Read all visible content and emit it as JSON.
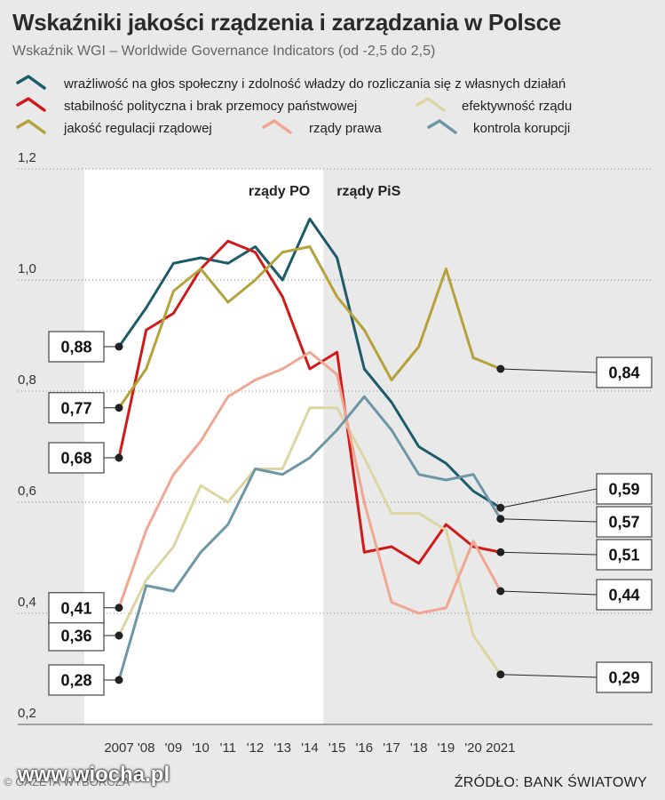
{
  "header": {
    "title": "Wskaźniki jakości rządzenia i zarządzania w Polsce",
    "subtitle": "Wskaźnik WGI – Worldwide Governance Indicators (od -2,5 do 2,5)"
  },
  "footer": {
    "source": "ŹRÓDŁO: BANK ŚWIATOWY",
    "credit": "© GAZETA WYBORCZA",
    "watermark": "www.wiocha.pl"
  },
  "chart_data": {
    "type": "line",
    "x": [
      2007,
      2008,
      2009,
      2010,
      2011,
      2012,
      2013,
      2014,
      2015,
      2016,
      2017,
      2018,
      2019,
      2020,
      2021
    ],
    "x_tick_labels": [
      "2007",
      "'08",
      "'09",
      "'10",
      "'11",
      "'12",
      "'13",
      "'14",
      "'15",
      "'16",
      "'17",
      "'18",
      "'19",
      "'20",
      "2021"
    ],
    "ylim": [
      0.2,
      1.2
    ],
    "y_ticks": [
      "0,2",
      "0,4",
      "0,6",
      "0,8",
      "1,0",
      "1,2"
    ],
    "grid": "horizontal dotted",
    "periods": [
      {
        "label": "rządy PO",
        "from": 2007,
        "to": 2015,
        "background": "#ffffff"
      },
      {
        "label": "rządy PiS",
        "from": 2015,
        "to": 2021,
        "background": "#e9e9e9"
      }
    ],
    "series": [
      {
        "name": "wrażliwość na głos społeczny i zdolność władzy do rozliczania się z własnych działań",
        "color": "#1d5b6b",
        "values": [
          0.88,
          0.95,
          1.03,
          1.04,
          1.03,
          1.06,
          1.0,
          1.11,
          1.04,
          0.84,
          0.78,
          0.7,
          0.67,
          0.62,
          0.59
        ],
        "start_label": "0,88",
        "end_label": "0,59"
      },
      {
        "name": "stabilność polityczna i brak przemocy państwowej",
        "color": "#d01a1a",
        "values": [
          0.68,
          0.91,
          0.94,
          1.02,
          1.07,
          1.05,
          0.97,
          0.84,
          0.87,
          0.51,
          0.52,
          0.49,
          0.56,
          0.52,
          0.51
        ],
        "start_label": "0,68",
        "end_label": "0,51"
      },
      {
        "name": "efektywność rządu",
        "color": "#ddd5a2",
        "values": [
          0.36,
          0.46,
          0.52,
          0.63,
          0.6,
          0.66,
          0.66,
          0.77,
          0.77,
          0.68,
          0.58,
          0.58,
          0.55,
          0.36,
          0.29
        ],
        "start_label": "0,36",
        "end_label": "0,29"
      },
      {
        "name": "jakość regulacji rządowej",
        "color": "#b5a23a",
        "values": [
          0.77,
          0.84,
          0.98,
          1.02,
          0.96,
          1.0,
          1.05,
          1.06,
          0.97,
          0.91,
          0.82,
          0.88,
          1.02,
          0.86,
          0.84
        ],
        "start_label": "0,77",
        "end_label": "0,84"
      },
      {
        "name": "rządy prawa",
        "color": "#f0a690",
        "values": [
          0.41,
          0.55,
          0.65,
          0.71,
          0.79,
          0.82,
          0.84,
          0.87,
          0.83,
          0.6,
          0.42,
          0.4,
          0.41,
          0.53,
          0.44
        ],
        "start_label": "0,41",
        "end_label": "0,44"
      },
      {
        "name": "kontrola korupcji",
        "color": "#6d96a6",
        "values": [
          0.28,
          0.45,
          0.44,
          0.51,
          0.56,
          0.66,
          0.65,
          0.68,
          0.73,
          0.79,
          0.73,
          0.65,
          0.64,
          0.65,
          0.57
        ],
        "start_label": "0,28",
        "end_label": "0,57"
      }
    ]
  }
}
